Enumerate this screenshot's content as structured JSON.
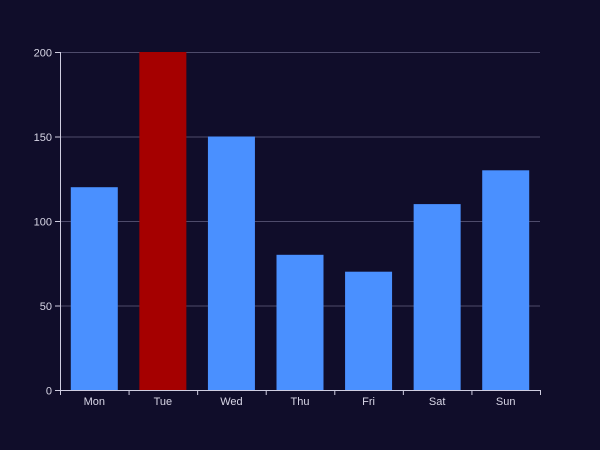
{
  "chart_data": {
    "type": "bar",
    "categories": [
      "Mon",
      "Tue",
      "Wed",
      "Thu",
      "Fri",
      "Sat",
      "Sun"
    ],
    "values": [
      120,
      200,
      150,
      80,
      70,
      110,
      130
    ],
    "highlight_index": 1,
    "ylim": [
      0,
      200
    ],
    "yticks": [
      0,
      50,
      100,
      150,
      200
    ],
    "grid": true,
    "legend": "none",
    "colors": {
      "background": "#100d2a",
      "bar": "#4a90ff",
      "bar_highlight": "#a50000",
      "grid": "#4e4b6b",
      "axis": "#cfcde0",
      "text": "#d8d6e6"
    }
  }
}
